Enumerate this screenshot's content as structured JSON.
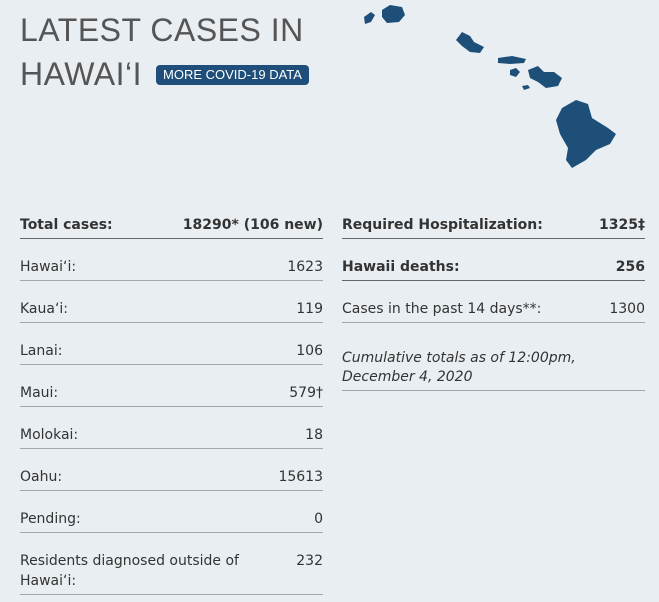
{
  "header": {
    "title_lines": [
      "LATEST CASES IN",
      "HAWAI‘I"
    ],
    "button": "MORE COVID-19 DATA"
  },
  "left_table": {
    "rows": [
      {
        "label": "Total cases:",
        "value": "18290* (106 new)"
      },
      {
        "label": "Hawai‘i:",
        "value": "1623"
      },
      {
        "label": "Kaua‘i:",
        "value": "119"
      },
      {
        "label": "Lanai:",
        "value": "106"
      },
      {
        "label": "Maui:",
        "value": "579†"
      },
      {
        "label": "Molokai:",
        "value": "18"
      },
      {
        "label": "Oahu:",
        "value": "15613"
      },
      {
        "label": "Pending:",
        "value": "0"
      },
      {
        "label": "Residents diagnosed outside of Hawai‘i:",
        "value": "232"
      }
    ]
  },
  "right_table": {
    "rows": [
      {
        "label": "Required Hospitalization:",
        "value": "1325‡"
      },
      {
        "label": "Hawaii deaths:",
        "value": "256"
      },
      {
        "label": "Cases in the past 14 days**:",
        "value": "1300"
      }
    ],
    "note": "Cumulative totals as of 12:00pm, December 4, 2020"
  }
}
